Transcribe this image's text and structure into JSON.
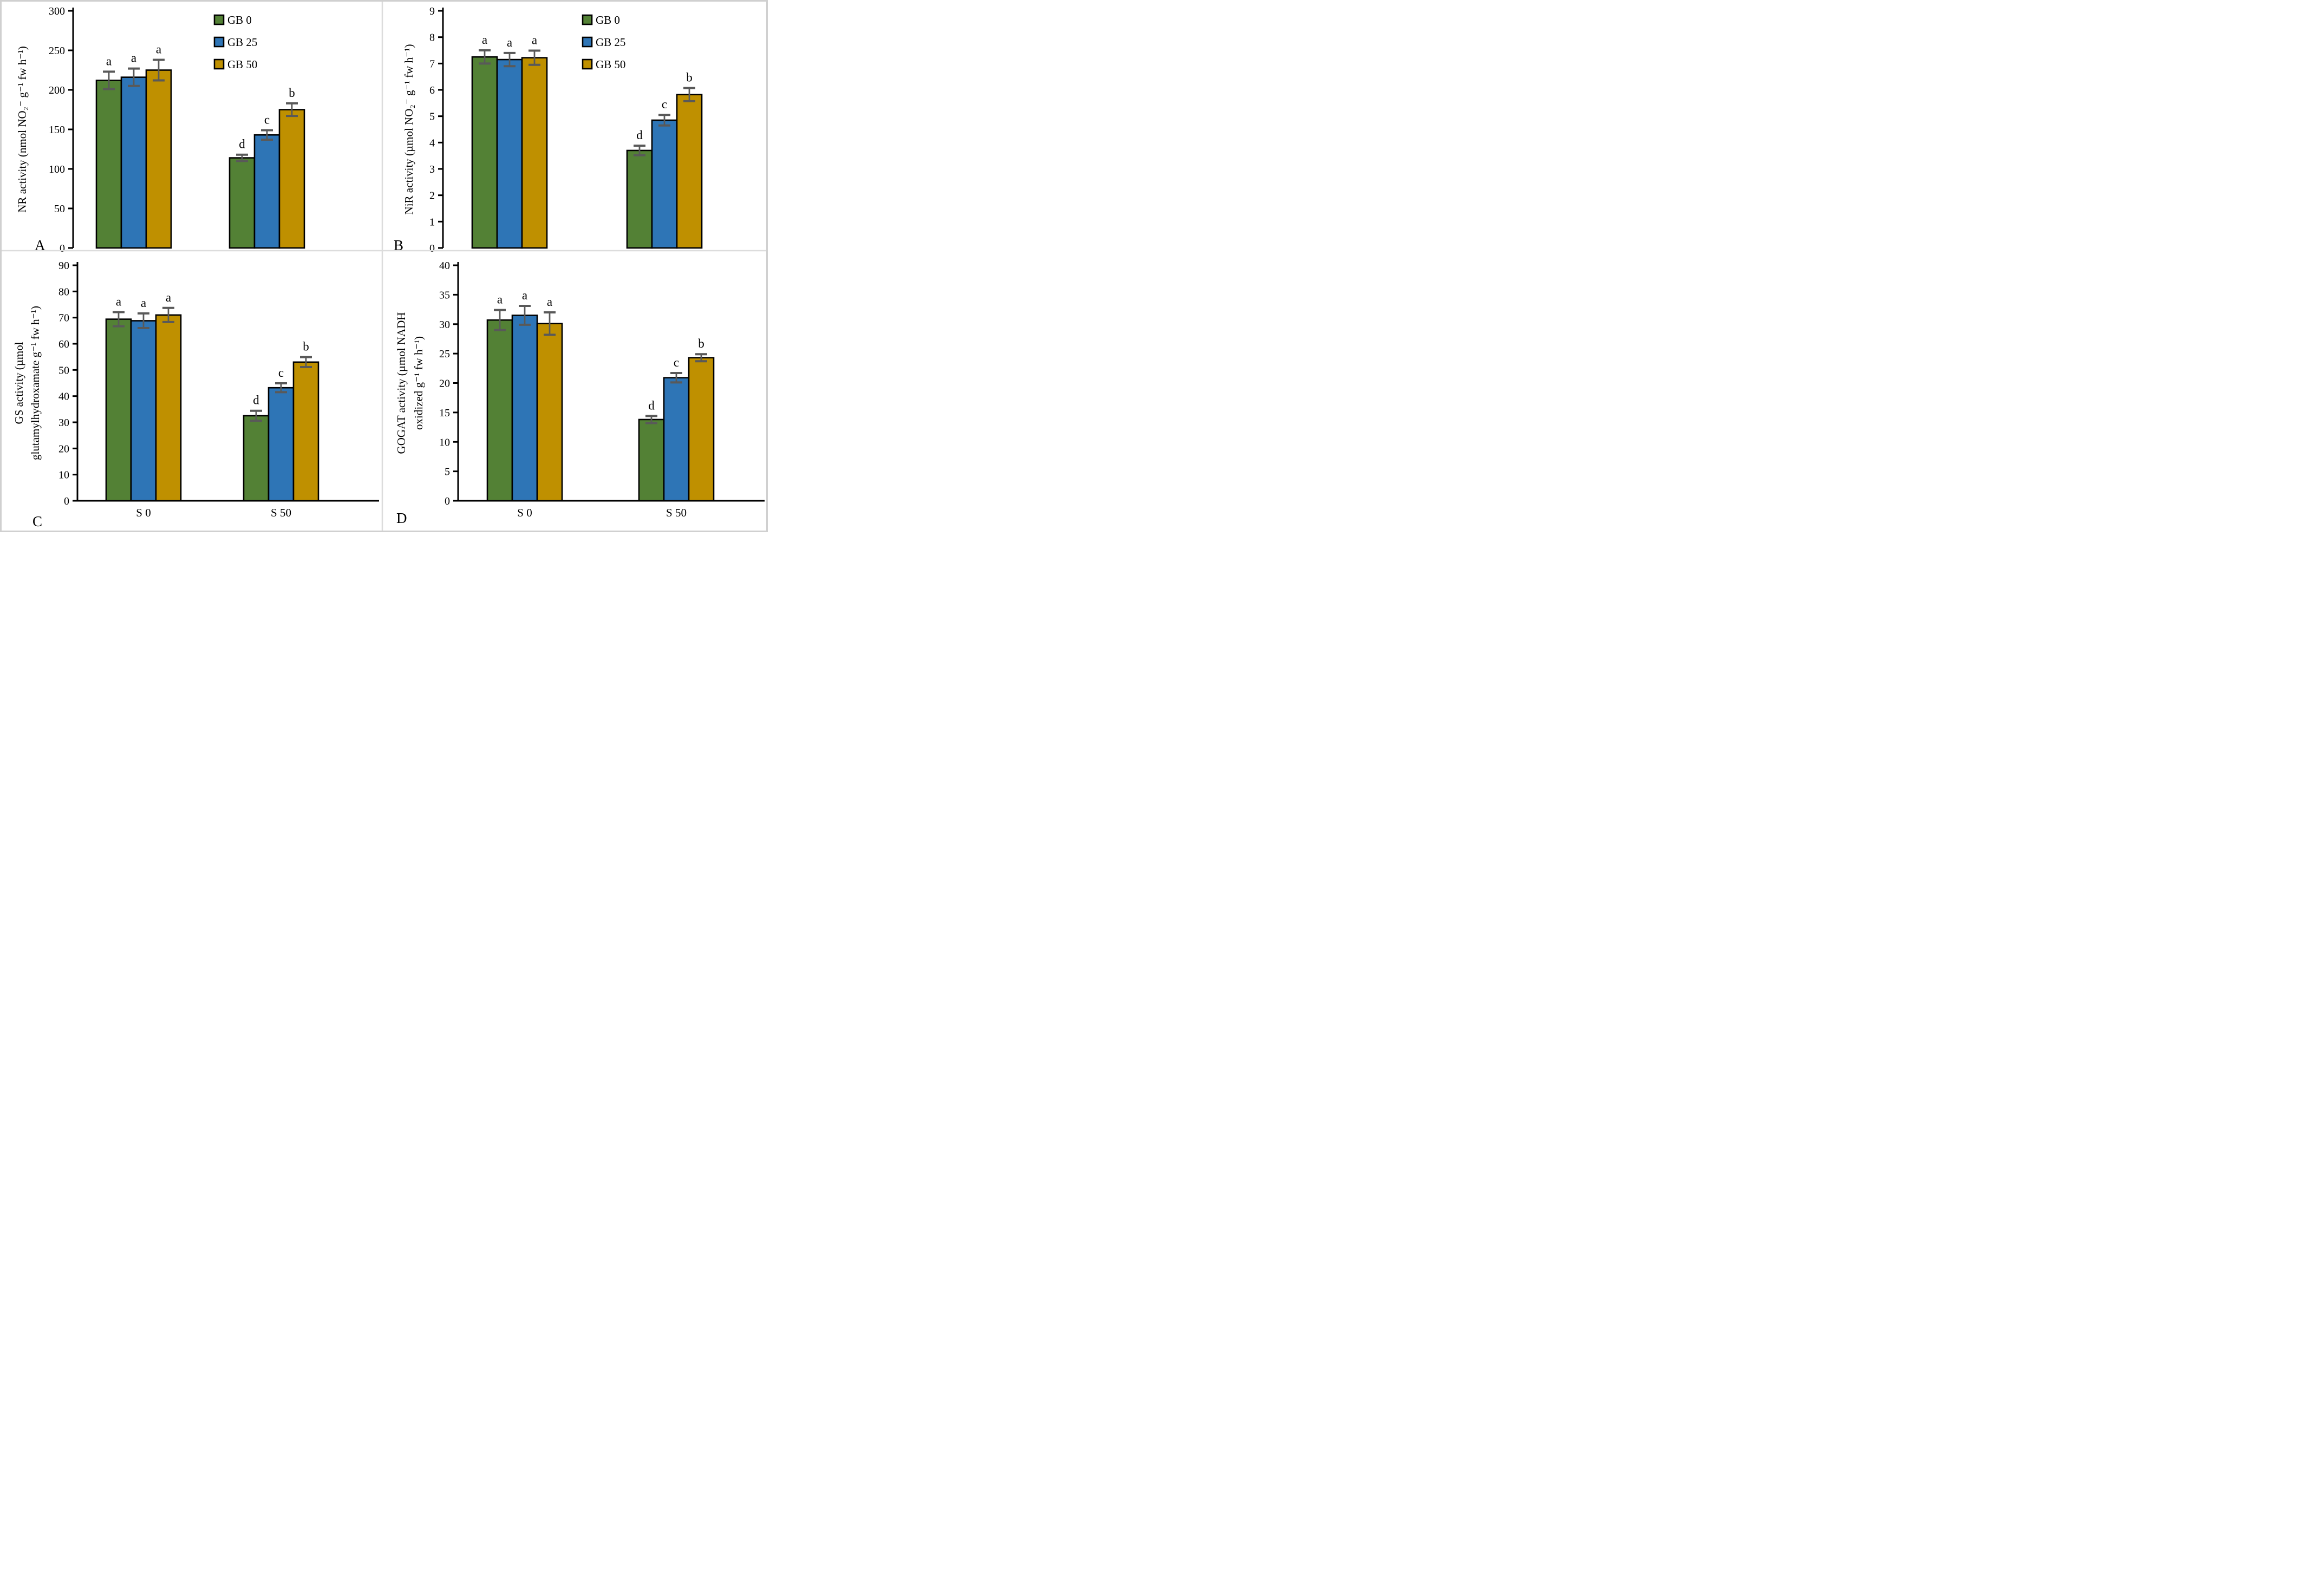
{
  "figure": {
    "background": "#ffffff",
    "border_color": "#d0d0d0",
    "divider_color": "#dcdcdc",
    "bar_outline_color": "#000000",
    "error_bar_color": "#595959"
  },
  "legend": {
    "items": [
      {
        "label": "GB 0",
        "color": "#538135",
        "marker": "legend-swatch-green"
      },
      {
        "label": "GB 25",
        "color": "#2E75B6",
        "marker": "legend-swatch-blue"
      },
      {
        "label": "GB 50",
        "color": "#BF9000",
        "marker": "legend-swatch-gold"
      }
    ]
  },
  "chart_data": [
    {
      "panel_letter": "A",
      "type": "bar",
      "title": "",
      "ylabel_lines": [
        "NR activity (nmol NO₂⁻ g⁻¹ fw h⁻¹)"
      ],
      "ylim": [
        0,
        300
      ],
      "ytick_step": 50,
      "categories": [
        "S 0",
        "S 50"
      ],
      "show_x_tick_labels": false,
      "show_legend": true,
      "grid": false,
      "series": [
        {
          "name": "GB 0",
          "color": "#538135",
          "values": [
            212,
            114
          ],
          "errors": [
            11,
            4
          ],
          "letters": [
            "a",
            "d"
          ]
        },
        {
          "name": "GB 25",
          "color": "#2E75B6",
          "values": [
            216,
            143
          ],
          "errors": [
            11,
            6
          ],
          "letters": [
            "a",
            "c"
          ]
        },
        {
          "name": "GB 50",
          "color": "#BF9000",
          "values": [
            225,
            175
          ],
          "errors": [
            13,
            8
          ],
          "letters": [
            "a",
            "b"
          ]
        }
      ]
    },
    {
      "panel_letter": "B",
      "type": "bar",
      "title": "",
      "ylabel_lines": [
        "NiR activity (µmol NO₂⁻ g⁻¹ fw h⁻¹)"
      ],
      "ylim": [
        0,
        9
      ],
      "ytick_step": 1,
      "categories": [
        "S 0",
        "S 50"
      ],
      "show_x_tick_labels": false,
      "show_legend": true,
      "grid": false,
      "series": [
        {
          "name": "GB 0",
          "color": "#538135",
          "values": [
            7.25,
            3.7
          ],
          "errors": [
            0.25,
            0.18
          ],
          "letters": [
            "a",
            "d"
          ]
        },
        {
          "name": "GB 25",
          "color": "#2E75B6",
          "values": [
            7.15,
            4.85
          ],
          "errors": [
            0.25,
            0.2
          ],
          "letters": [
            "a",
            "c"
          ]
        },
        {
          "name": "GB 50",
          "color": "#BF9000",
          "values": [
            7.22,
            5.82
          ],
          "errors": [
            0.27,
            0.25
          ],
          "letters": [
            "a",
            "b"
          ]
        }
      ]
    },
    {
      "panel_letter": "C",
      "type": "bar",
      "title": "",
      "ylabel_lines": [
        "GS activity (µmol",
        "glutamylhydroxamate g⁻¹ fw h⁻¹)"
      ],
      "ylim": [
        0,
        90
      ],
      "ytick_step": 10,
      "categories": [
        "S 0",
        "S 50"
      ],
      "show_x_tick_labels": true,
      "show_legend": false,
      "grid": false,
      "series": [
        {
          "name": "GB 0",
          "color": "#538135",
          "values": [
            69.4,
            32.5
          ],
          "errors": [
            2.7,
            1.9
          ],
          "letters": [
            "a",
            "d"
          ]
        },
        {
          "name": "GB 25",
          "color": "#2E75B6",
          "values": [
            68.8,
            43.2
          ],
          "errors": [
            2.8,
            1.7
          ],
          "letters": [
            "a",
            "c"
          ]
        },
        {
          "name": "GB 50",
          "color": "#BF9000",
          "values": [
            71.0,
            53.0
          ],
          "errors": [
            2.7,
            1.9
          ],
          "letters": [
            "a",
            "b"
          ]
        }
      ]
    },
    {
      "panel_letter": "D",
      "type": "bar",
      "title": "",
      "ylabel_lines": [
        "GOGAT activity (µmol NADH",
        "oxidized g⁻¹ fw h⁻¹)"
      ],
      "ylim": [
        0,
        40
      ],
      "ytick_step": 5,
      "categories": [
        "S 0",
        "S 50"
      ],
      "show_x_tick_labels": true,
      "show_legend": false,
      "grid": false,
      "series": [
        {
          "name": "GB 0",
          "color": "#538135",
          "values": [
            30.7,
            13.8
          ],
          "errors": [
            1.7,
            0.6
          ],
          "letters": [
            "a",
            "d"
          ]
        },
        {
          "name": "GB 25",
          "color": "#2E75B6",
          "values": [
            31.5,
            20.9
          ],
          "errors": [
            1.6,
            0.8
          ],
          "letters": [
            "a",
            "c"
          ]
        },
        {
          "name": "GB 50",
          "color": "#BF9000",
          "values": [
            30.1,
            24.3
          ],
          "errors": [
            1.9,
            0.6
          ],
          "letters": [
            "a",
            "b"
          ]
        }
      ]
    }
  ]
}
